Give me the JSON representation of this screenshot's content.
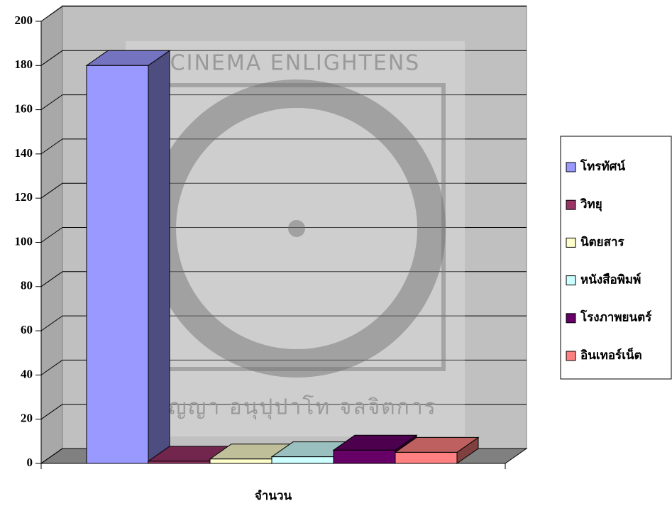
{
  "chart_data": {
    "type": "bar3d",
    "categories": [
      "จำนวน"
    ],
    "series": [
      {
        "name": "โทรทัศน์",
        "color": "#9999ff",
        "values": [
          180
        ]
      },
      {
        "name": "วิทยุ",
        "color": "#993366",
        "values": [
          1
        ]
      },
      {
        "name": "นิตยสาร",
        "color": "#ffffcc",
        "values": [
          2
        ]
      },
      {
        "name": "หนังสือพิมพ์",
        "color": "#ccffff",
        "values": [
          3
        ]
      },
      {
        "name": "โรงภาพยนตร์",
        "color": "#660066",
        "values": [
          6
        ]
      },
      {
        "name": "อินเทอร์เน็ต",
        "color": "#ff8080",
        "values": [
          5
        ]
      }
    ],
    "ylim": [
      0,
      200
    ],
    "yticks": [
      0,
      20,
      40,
      60,
      80,
      100,
      120,
      140,
      160,
      180,
      200
    ],
    "grid": true,
    "legend": "right",
    "watermark": {
      "top": "CINEMA   ENLIGHTENS",
      "bottom": "ปุญญา อนุปุปาโท จลจิตการ"
    }
  }
}
